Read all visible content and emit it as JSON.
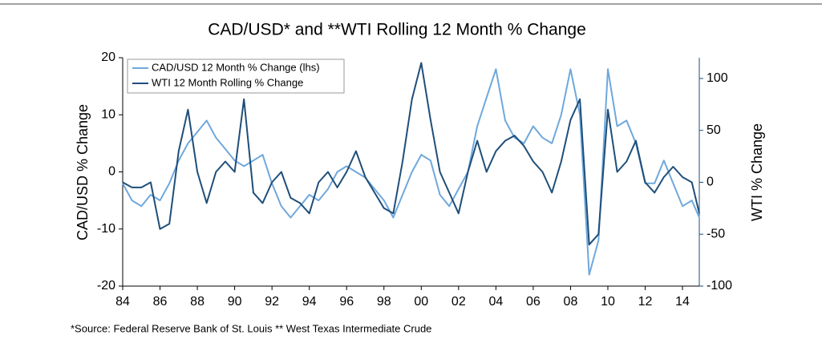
{
  "chart_data": {
    "type": "line",
    "title": "CAD/USD* and **WTI Rolling 12 Month % Change",
    "ylabel": "CAD/USD % Change",
    "y2label": "WTI % Change",
    "note": "*Source: Federal Reserve Bank of St. Louis  ** West Texas Intermediate Crude",
    "x": [
      1984,
      1984.5,
      1985,
      1985.5,
      1986,
      1986.5,
      1987,
      1987.5,
      1988,
      1988.5,
      1989,
      1989.5,
      1990,
      1990.5,
      1991,
      1991.5,
      1992,
      1992.5,
      1993,
      1993.5,
      1994,
      1994.5,
      1995,
      1995.5,
      1996,
      1996.5,
      1997,
      1997.5,
      1998,
      1998.5,
      1999,
      1999.5,
      2000,
      2000.5,
      2001,
      2001.5,
      2002,
      2002.5,
      2003,
      2003.5,
      2004,
      2004.5,
      2005,
      2005.5,
      2006,
      2006.5,
      2007,
      2007.5,
      2008,
      2008.5,
      2009,
      2009.5,
      2010,
      2010.5,
      2011,
      2011.5,
      2012,
      2012.5,
      2013,
      2013.5,
      2014,
      2014.5,
      2014.9
    ],
    "xlim": [
      1984,
      2014.9
    ],
    "xticks": [
      {
        "value": 1984,
        "label": "84"
      },
      {
        "value": 1986,
        "label": "86"
      },
      {
        "value": 1988,
        "label": "88"
      },
      {
        "value": 1990,
        "label": "90"
      },
      {
        "value": 1992,
        "label": "92"
      },
      {
        "value": 1994,
        "label": "94"
      },
      {
        "value": 1996,
        "label": "96"
      },
      {
        "value": 1998,
        "label": "98"
      },
      {
        "value": 2000,
        "label": "00"
      },
      {
        "value": 2002,
        "label": "02"
      },
      {
        "value": 2004,
        "label": "04"
      },
      {
        "value": 2006,
        "label": "06"
      },
      {
        "value": 2008,
        "label": "08"
      },
      {
        "value": 2010,
        "label": "10"
      },
      {
        "value": 2012,
        "label": "12"
      },
      {
        "value": 2014,
        "label": "14"
      }
    ],
    "ylim": [
      -20,
      20
    ],
    "yticks": [
      -20,
      -10,
      0,
      10,
      20
    ],
    "y2lim": [
      -100,
      120
    ],
    "y2ticks": [
      -100,
      -50,
      0,
      50,
      100
    ],
    "legend": "upper left",
    "series": [
      {
        "name": "CAD/USD 12 Month % Change (lhs)",
        "color": "#6fa8dc",
        "values": [
          -2,
          -5,
          -6,
          -4,
          -5,
          -2,
          2,
          5,
          7,
          9,
          6,
          4,
          2,
          1,
          2,
          3,
          -2,
          -6,
          -8,
          -6,
          -4,
          -5,
          -3,
          0,
          1,
          0,
          -1,
          -3,
          -5,
          -8,
          -4,
          0,
          3,
          2,
          -4,
          -6,
          -3,
          0,
          8,
          13,
          18,
          9,
          6,
          5,
          8,
          6,
          5,
          10,
          18,
          10,
          -18,
          -12,
          18,
          8,
          9,
          5,
          -2,
          -2,
          2,
          -2,
          -6,
          -5,
          -8
        ]
      },
      {
        "name": "WTI 12 Month Rolling % Change",
        "color": "#1f4e79",
        "axis": "y2",
        "values": [
          0,
          -5,
          -5,
          0,
          -45,
          -40,
          30,
          70,
          10,
          -20,
          10,
          20,
          10,
          80,
          -10,
          -20,
          0,
          10,
          -15,
          -20,
          -30,
          0,
          10,
          -5,
          10,
          30,
          5,
          -10,
          -25,
          -30,
          20,
          80,
          115,
          60,
          10,
          -10,
          -30,
          10,
          40,
          10,
          30,
          40,
          45,
          35,
          20,
          10,
          -10,
          20,
          60,
          80,
          -60,
          -50,
          70,
          10,
          20,
          40,
          0,
          -10,
          5,
          15,
          5,
          0,
          -30
        ]
      }
    ]
  }
}
